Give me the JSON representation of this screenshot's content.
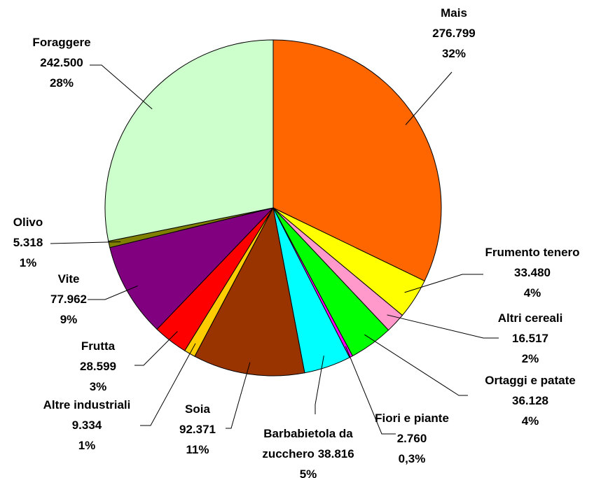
{
  "chart_data": {
    "type": "pie",
    "categories": [
      "Mais",
      "Frumento tenero",
      "Altri cereali",
      "Ortaggi e patate",
      "Fiori e piante",
      "Barbabietola da zucchero",
      "Soia",
      "Altre industriali",
      "Frutta",
      "Vite",
      "Olivo",
      "Foraggere"
    ],
    "values": [
      276799,
      33480,
      16517,
      36128,
      2760,
      38816,
      92371,
      9334,
      28599,
      77962,
      5318,
      242500
    ],
    "value_labels": [
      "276.799",
      "33.480",
      "16.517",
      "36.128",
      "2.760",
      "38.816",
      "92.371",
      "9.334",
      "28.599",
      "77.962",
      "5.318",
      "242.500"
    ],
    "percent_labels": [
      "32%",
      "4%",
      "2%",
      "4%",
      "0,3%",
      "5%",
      "11%",
      "1%",
      "3%",
      "9%",
      "1%",
      "28%"
    ],
    "colors": [
      "#FF6600",
      "#FFFF00",
      "#FF99CC",
      "#00FF00",
      "#FF00FF",
      "#00FFFF",
      "#993300",
      "#FFCC00",
      "#FF0000",
      "#800080",
      "#808000",
      "#CCFFCC"
    ]
  }
}
